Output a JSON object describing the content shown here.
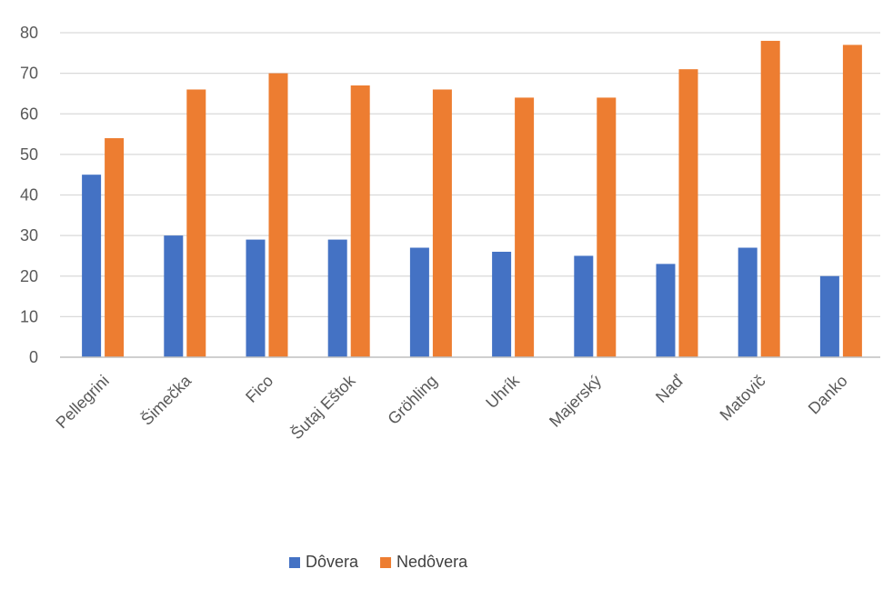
{
  "chart_data": {
    "type": "bar",
    "categories": [
      "Pellegrini",
      "Šimečka",
      "Fico",
      "Šutaj Eštok",
      "Gröhling",
      "Uhrík",
      "Majerský",
      "Naď",
      "Matovič",
      "Danko"
    ],
    "series": [
      {
        "name": "Dôvera",
        "color": "#4472c4",
        "values": [
          45,
          30,
          29,
          29,
          27,
          26,
          25,
          23,
          27,
          20
        ]
      },
      {
        "name": "Nedôvera",
        "color": "#ed7d31",
        "values": [
          54,
          66,
          70,
          67,
          66,
          64,
          64,
          71,
          78,
          77
        ]
      }
    ],
    "ylim": [
      0,
      80
    ],
    "yticks": [
      0,
      10,
      20,
      30,
      40,
      50,
      60,
      70,
      80
    ],
    "grid": true,
    "legend": "bottom",
    "title": "",
    "xlabel": "",
    "ylabel": ""
  }
}
